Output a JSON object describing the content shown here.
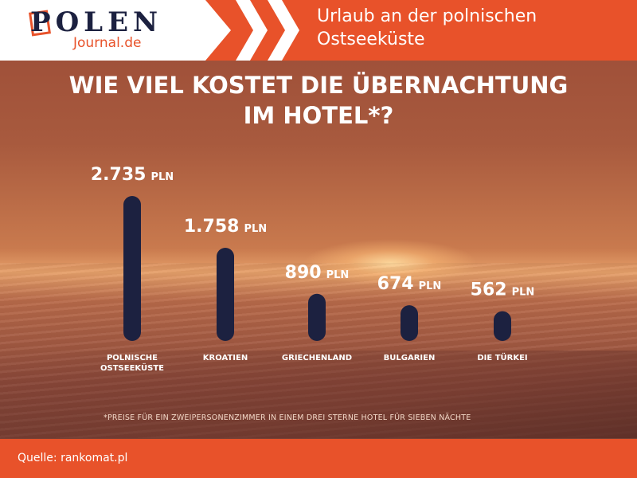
{
  "header": {
    "logo_title": "POLEN",
    "logo_subtitle": "Journal.de",
    "headline": "Urlaub an der polnischen Ostseeküste"
  },
  "chart_data": {
    "type": "bar",
    "title_line1": "WIE VIEL KOSTET DIE ÜBERNACHTUNG",
    "title_line2": "IM HOTEL*?",
    "unit": "PLN",
    "categories": [
      [
        "POLNISCHE",
        "OSTSEEKÜSTE"
      ],
      [
        "KROATIEN"
      ],
      [
        "GRIECHENLAND"
      ],
      [
        "BULGARIEN"
      ],
      [
        "DIE TÜRKEI"
      ]
    ],
    "values": [
      2735,
      1758,
      890,
      674,
      562
    ],
    "value_labels": [
      "2.735",
      "1.758",
      "890",
      "674",
      "562"
    ],
    "bar_color": "#1c2140"
  },
  "footnote": "*PREISE FÜR EIN ZWEIPERSONENZIMMER IN EINEM DREI STERNE HOTEL FÜR SIEBEN NÄCHTE",
  "footer": {
    "source": "Quelle: rankomat.pl"
  },
  "colors": {
    "accent": "#e8522a",
    "navy": "#1c2140"
  }
}
